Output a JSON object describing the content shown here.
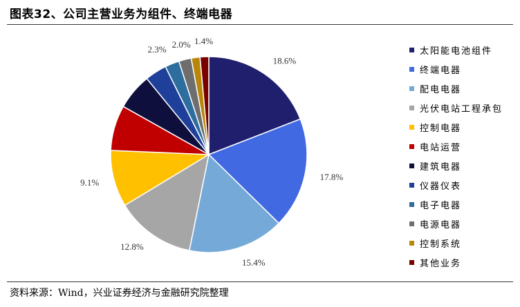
{
  "figure": {
    "title": "图表32、公司主营业务为组件、终端电器",
    "source": "资料来源：Wind，兴业证券经济与金融研究院整理"
  },
  "chart_data": {
    "type": "pie",
    "categories": [
      "太阳能电池组件",
      "终端电器",
      "配电电器",
      "光伏电站工程承包",
      "控制电器",
      "电站运营",
      "建筑电器",
      "仪器仪表",
      "电子电器",
      "电源电器",
      "控制系统",
      "其他业务"
    ],
    "values": [
      18.6,
      17.8,
      15.4,
      12.8,
      9.1,
      7.3,
      5.8,
      3.5,
      2.3,
      2.0,
      1.4,
      1.4
    ],
    "data_labels": [
      "18.6%",
      "17.8%",
      "15.4%",
      "12.8%",
      "9.1%",
      "",
      "",
      "",
      "2.3%",
      "2.0%",
      "",
      "1.4%"
    ],
    "colors": [
      "#1f1f6e",
      "#4169e1",
      "#75aad8",
      "#a6a6a6",
      "#ffc000",
      "#c00000",
      "#0f0f3d",
      "#1e3f9a",
      "#2e6e9e",
      "#6e6e6e",
      "#b8860b",
      "#7a0000"
    ],
    "legend_position": "right"
  }
}
